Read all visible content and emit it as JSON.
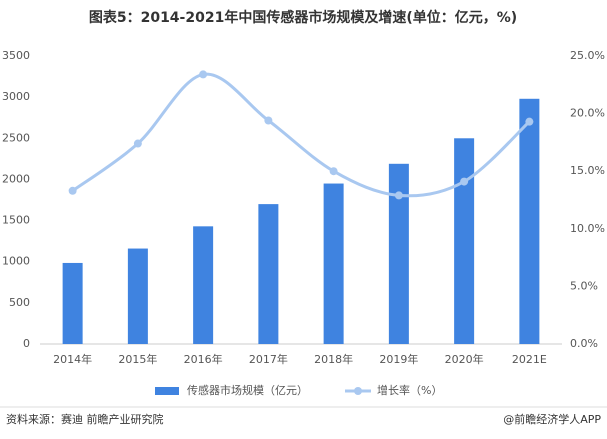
{
  "chart_data": {
    "type": "bar-line",
    "title": "图表5：2014-2021年中国传感器市场规模及增速(单位：亿元，%)",
    "categories": [
      "2014年",
      "2015年",
      "2016年",
      "2017年",
      "2018年",
      "2019年",
      "2020年",
      "2021E"
    ],
    "series": [
      {
        "name": "传感器市场规模（亿元）",
        "color": "#3f83e0",
        "type": "bar",
        "values": [
          985,
          1160,
          1430,
          1700,
          1950,
          2190,
          2500,
          2980
        ]
      },
      {
        "name": "增长率（%）",
        "color": "#a9c8f0",
        "type": "line",
        "axis": "y2",
        "values": [
          13.3,
          17.4,
          23.4,
          19.4,
          15.0,
          12.9,
          14.1,
          19.3
        ]
      }
    ],
    "ylim": [
      0,
      3500
    ],
    "yticks": [
      0,
      500,
      1000,
      1500,
      2000,
      2500,
      3000,
      3500
    ],
    "y2lim": [
      0,
      25
    ],
    "y2ticks": [
      {
        "value": 0,
        "label": "0.0%"
      },
      {
        "value": 5,
        "label": "5.0%"
      },
      {
        "value": 10,
        "label": "10.0%"
      },
      {
        "value": 15,
        "label": "15.0%"
      },
      {
        "value": 20,
        "label": "20.0%"
      },
      {
        "value": 25,
        "label": "25.0%"
      }
    ],
    "source": "资料来源：赛迪 前瞻产业研究院",
    "credit": "@前瞻经济学人APP"
  }
}
